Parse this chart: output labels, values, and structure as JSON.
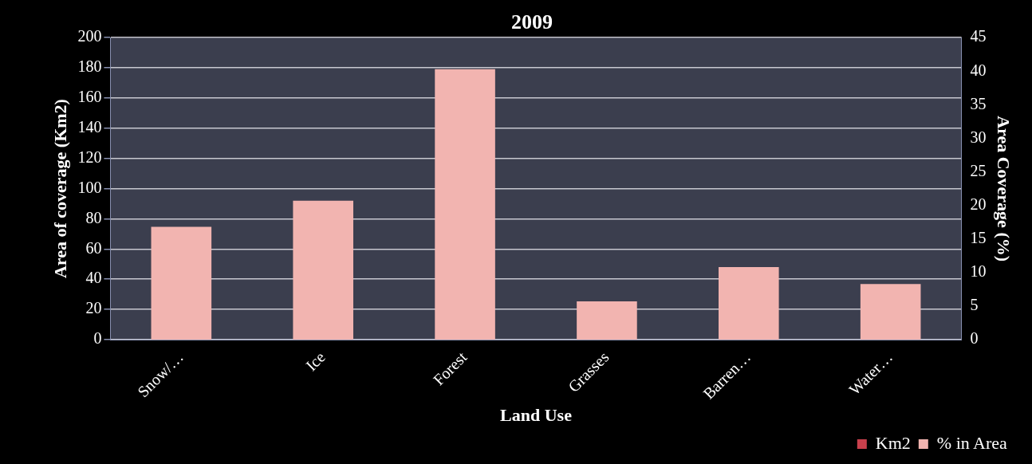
{
  "chart_data": {
    "type": "bar",
    "title": "2009",
    "xlabel": "Land Use",
    "ylabel": "Area of coverage (Km2)",
    "y2label": "Area Coverage (%)",
    "categories": [
      "Snow/…",
      "Ice",
      "Forest",
      "Grasses",
      "Barren…",
      "Water…"
    ],
    "series": [
      {
        "name": "Km2",
        "color": "#c8404c",
        "values": [
          null,
          null,
          null,
          null,
          null,
          null
        ]
      },
      {
        "name": "% in Area",
        "color": "#f2b4b0",
        "axis": "y2",
        "values": [
          16.8,
          20.7,
          40.3,
          5.7,
          10.8,
          8.3
        ]
      }
    ],
    "ylim": [
      0,
      200
    ],
    "yticks": [
      0,
      20,
      40,
      60,
      80,
      100,
      120,
      140,
      160,
      180,
      200
    ],
    "y2lim": [
      0,
      45
    ],
    "y2ticks": [
      0,
      5,
      10,
      15,
      20,
      25,
      30,
      35,
      40,
      45
    ],
    "grid": "y",
    "legend": "bottom right"
  }
}
